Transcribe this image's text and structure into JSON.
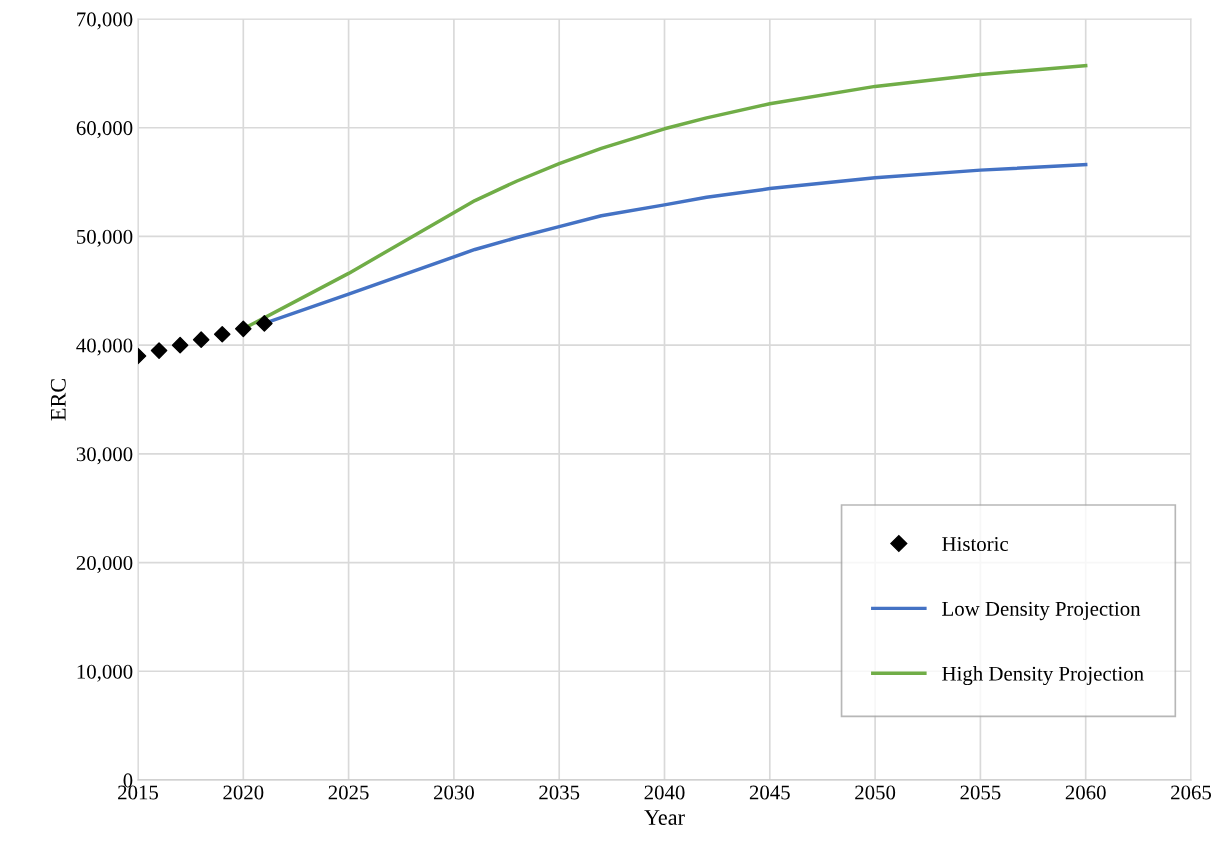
{
  "chart_data": {
    "type": "line",
    "xlabel": "Year",
    "ylabel": "ERC",
    "series": [
      {
        "name": "Historic",
        "type": "scatter",
        "marker": "diamond",
        "color": "#000000",
        "x": [
          2015,
          2016,
          2017,
          2018,
          2019,
          2020,
          2021
        ],
        "values": [
          39000,
          39500,
          40000,
          40500,
          41000,
          41500,
          42000
        ]
      },
      {
        "name": "Low Density Projection",
        "color": "#4472c4",
        "x": [
          2021,
          2025,
          2031,
          2033,
          2035,
          2037,
          2040,
          2042,
          2045,
          2050,
          2055,
          2060
        ],
        "values": [
          42000,
          44700,
          48800,
          49900,
          50900,
          51900,
          52900,
          53600,
          54400,
          55400,
          56100,
          56600
        ]
      },
      {
        "name": "High Density Projection",
        "color": "#70ad47",
        "x": [
          2020,
          2025,
          2031,
          2033,
          2035,
          2037,
          2040,
          2042,
          2045,
          2050,
          2055,
          2060
        ],
        "values": [
          41500,
          46600,
          53300,
          55100,
          56700,
          58100,
          59900,
          60900,
          62200,
          63800,
          64900,
          65700
        ]
      }
    ],
    "xlim": [
      2015,
      2065
    ],
    "xticks": [
      2015,
      2020,
      2025,
      2030,
      2035,
      2040,
      2045,
      2050,
      2055,
      2060,
      2065
    ],
    "ylim": [
      0,
      70000
    ],
    "yticks": [
      0,
      {
        "value": 10000,
        "label": "10,000"
      },
      {
        "value": 20000,
        "label": "20,000"
      },
      {
        "value": 30000,
        "label": "30,000"
      },
      {
        "value": 40000,
        "label": "40,000"
      },
      {
        "value": 50000,
        "label": "50,000"
      },
      {
        "value": 60000,
        "label": "60,000"
      },
      {
        "value": 70000,
        "label": "70,000"
      }
    ],
    "grid": true,
    "legend": "lower right",
    "line_style": "solid"
  }
}
